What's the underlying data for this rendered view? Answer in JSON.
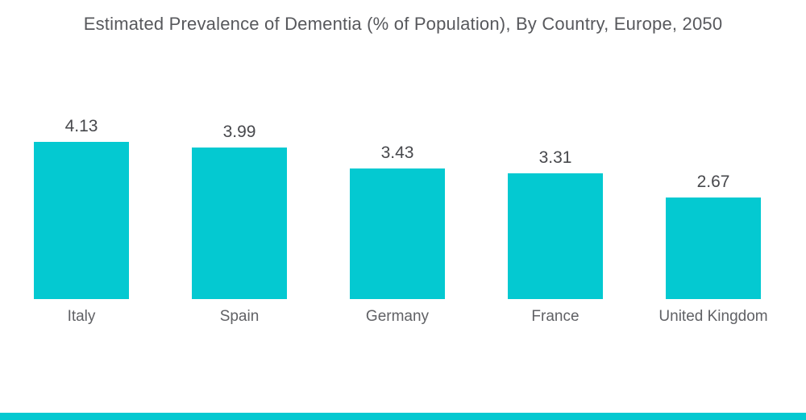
{
  "title": "Estimated Prevalence of Dementia (% of Population), By Country, Europe, 2050",
  "chart_data": {
    "type": "bar",
    "title": "Estimated Prevalence of Dementia (% of Population), By Country, Europe, 2050",
    "categories": [
      "Italy",
      "Spain",
      "Germany",
      "France",
      "United Kingdom"
    ],
    "values": [
      4.13,
      3.99,
      3.43,
      3.31,
      2.67
    ],
    "value_labels": [
      "4.13",
      "3.99",
      "3.43",
      "3.31",
      "2.67"
    ],
    "xlabel": "",
    "ylabel": "",
    "ylim": [
      0,
      4.5
    ],
    "grid": false,
    "legend": false,
    "axes_visible": false,
    "bar_color": "#04c9d1",
    "value_label_position": "above-bar",
    "category_label_position": "below-bar"
  },
  "colors": {
    "accent": "#04c9d1",
    "background": "#ffffff",
    "title_text": "#57585c",
    "value_text": "#47484c",
    "category_text": "#606165"
  },
  "footer": {
    "accent_strip": true
  }
}
